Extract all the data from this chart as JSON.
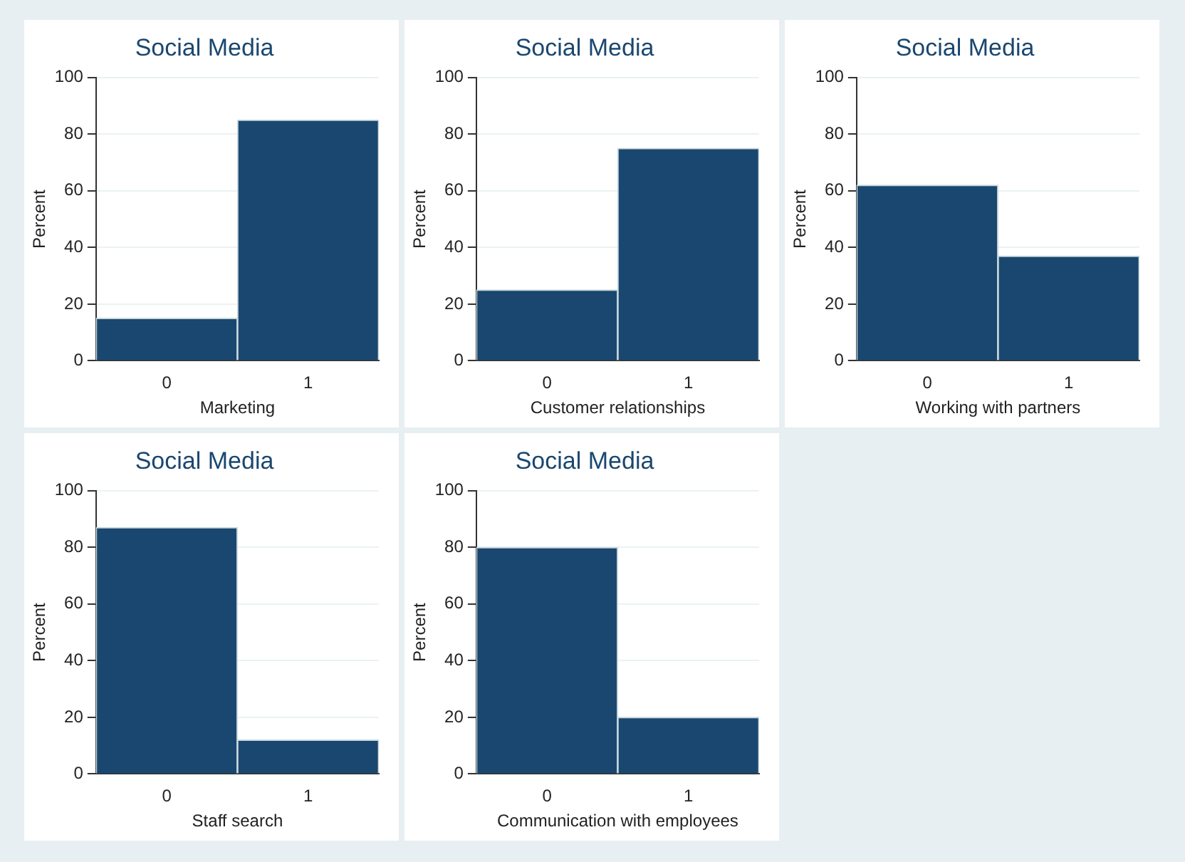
{
  "chart_data": [
    {
      "type": "bar",
      "title": "Social Media",
      "xlabel": "Marketing",
      "ylabel": "Percent",
      "categories": [
        "0",
        "1"
      ],
      "values": [
        15,
        85
      ],
      "color": "#1a476f",
      "ylim": [
        0,
        100
      ],
      "yticks": [
        0,
        20,
        40,
        60,
        80,
        100
      ],
      "grid": "y"
    },
    {
      "type": "bar",
      "title": "Social Media",
      "xlabel": "Customer relationships",
      "ylabel": "Percent",
      "categories": [
        "0",
        "1"
      ],
      "values": [
        25,
        75
      ],
      "color": "#1a476f",
      "ylim": [
        0,
        100
      ],
      "yticks": [
        0,
        20,
        40,
        60,
        80,
        100
      ],
      "grid": "y"
    },
    {
      "type": "bar",
      "title": "Social Media",
      "xlabel": "Working with partners",
      "ylabel": "Percent",
      "categories": [
        "0",
        "1"
      ],
      "values": [
        62,
        37
      ],
      "color": "#1a476f",
      "ylim": [
        0,
        100
      ],
      "yticks": [
        0,
        20,
        40,
        60,
        80,
        100
      ],
      "grid": "y"
    },
    {
      "type": "bar",
      "title": "Social Media",
      "xlabel": "Staff search",
      "ylabel": "Percent",
      "categories": [
        "0",
        "1"
      ],
      "values": [
        87,
        12
      ],
      "color": "#1a476f",
      "ylim": [
        0,
        100
      ],
      "yticks": [
        0,
        20,
        40,
        60,
        80,
        100
      ],
      "grid": "y"
    },
    {
      "type": "bar",
      "title": "Social Media",
      "xlabel": "Communication with employees",
      "ylabel": "Percent",
      "categories": [
        "0",
        "1"
      ],
      "values": [
        80,
        20
      ],
      "color": "#1a476f",
      "ylim": [
        0,
        100
      ],
      "yticks": [
        0,
        20,
        40,
        60,
        80,
        100
      ],
      "grid": "y"
    }
  ]
}
